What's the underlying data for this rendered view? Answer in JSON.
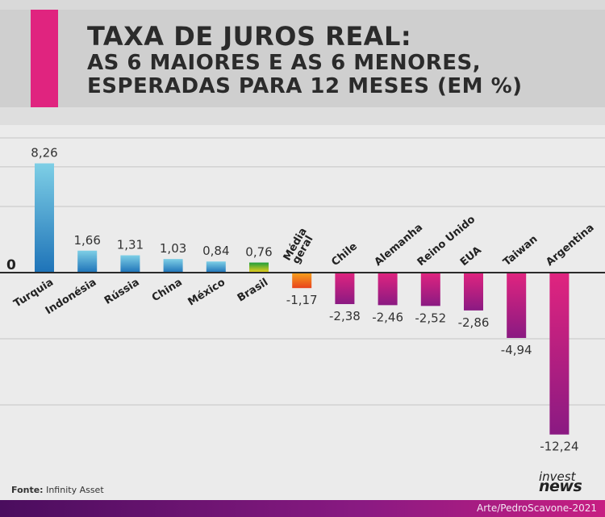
{
  "header": {
    "title": "TAXA DE JUROS REAL:",
    "subtitle_line1": "AS 6 MAIORES E AS 6 MENORES,",
    "subtitle_line2": "ESPERADAS PARA 12 MESES (EM %)"
  },
  "chart_data": {
    "type": "bar",
    "categories": [
      "Turquia",
      "Indonésia",
      "Rússia",
      "China",
      "México",
      "Brasil",
      "Média geral",
      "Chile",
      "Alemanha",
      "Reino Unido",
      "EUA",
      "Taiwan",
      "Argentina"
    ],
    "values": [
      8.26,
      1.66,
      1.31,
      1.03,
      0.84,
      0.76,
      -1.17,
      -2.38,
      -2.46,
      -2.52,
      -2.86,
      -4.94,
      -12.24
    ],
    "value_labels": [
      "8,26",
      "1,66",
      "1,31",
      "1,03",
      "0,84",
      "0,76",
      "-1,17",
      "-2,38",
      "-2,46",
      "-2,52",
      "-2,86",
      "-4,94",
      "-12,24"
    ],
    "zero_label": "0",
    "ylim": [
      -14,
      10
    ],
    "grid": true,
    "colors": {
      "positive_top": "#7ecfe6",
      "positive_bottom": "#1e73b8",
      "negative_top": "#e0247f",
      "negative_bottom": "#8a1a82",
      "brasil": [
        "#1f9e3b",
        "#f2d21b"
      ],
      "media": [
        "#f7a21b",
        "#e8431c"
      ]
    }
  },
  "footer": {
    "source_label": "Fonte:",
    "source_value": "Infinity Asset",
    "logo_top": "invest",
    "logo_bottom": "news",
    "credit": "Arte/PedroScavone-2021"
  }
}
